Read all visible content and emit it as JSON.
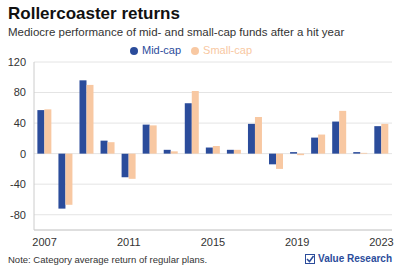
{
  "chart_data": {
    "type": "bar",
    "title": "Rollercoaster returns",
    "subtitle": "Mediocre performance of mid- and small-cap funds after a hit year",
    "note": "Note: Category average return of regular plans.",
    "source": "Value Research",
    "categories": [
      "2007",
      null,
      null,
      null,
      "2011",
      null,
      null,
      null,
      "2015",
      null,
      null,
      null,
      "2019",
      null,
      null,
      null,
      "2023"
    ],
    "series": [
      {
        "name": "Mid-cap",
        "color": "#2b4c9b",
        "values": [
          57,
          -72,
          96,
          17,
          -31,
          38,
          5,
          66,
          8,
          5,
          39,
          -14,
          2,
          21,
          42,
          2,
          36
        ]
      },
      {
        "name": "Small-cap",
        "color": "#f8c8a2",
        "values": [
          58,
          -67,
          90,
          15,
          -33,
          37,
          3,
          82,
          10,
          5,
          48,
          -20,
          -2,
          25,
          56,
          1,
          39
        ]
      }
    ],
    "ylim": [
      -100,
      120
    ],
    "yticks": [
      -80,
      -40,
      0,
      40,
      80,
      120
    ],
    "grid": true,
    "legend": "top"
  }
}
